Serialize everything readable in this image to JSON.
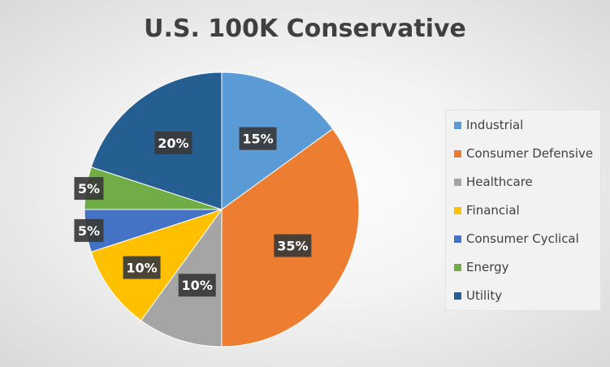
{
  "chart_data": {
    "type": "pie",
    "title": "U.S. 100K Conservative",
    "legend_position": "right",
    "slices": [
      {
        "name": "Industrial",
        "value": 15,
        "label": "15%",
        "color": "#5B9BD5"
      },
      {
        "name": "Consumer Defensive",
        "value": 35,
        "label": "35%",
        "color": "#ED7D31"
      },
      {
        "name": "Healthcare",
        "value": 10,
        "label": "10%",
        "color": "#A5A5A5"
      },
      {
        "name": "Financial",
        "value": 10,
        "label": "10%",
        "color": "#FFC000"
      },
      {
        "name": "Consumer Cyclical",
        "value": 5,
        "label": "5%",
        "color": "#4472C4"
      },
      {
        "name": "Energy",
        "value": 5,
        "label": "5%",
        "color": "#70AD47"
      },
      {
        "name": "Utility",
        "value": 20,
        "label": "20%",
        "color": "#255E91"
      }
    ]
  }
}
